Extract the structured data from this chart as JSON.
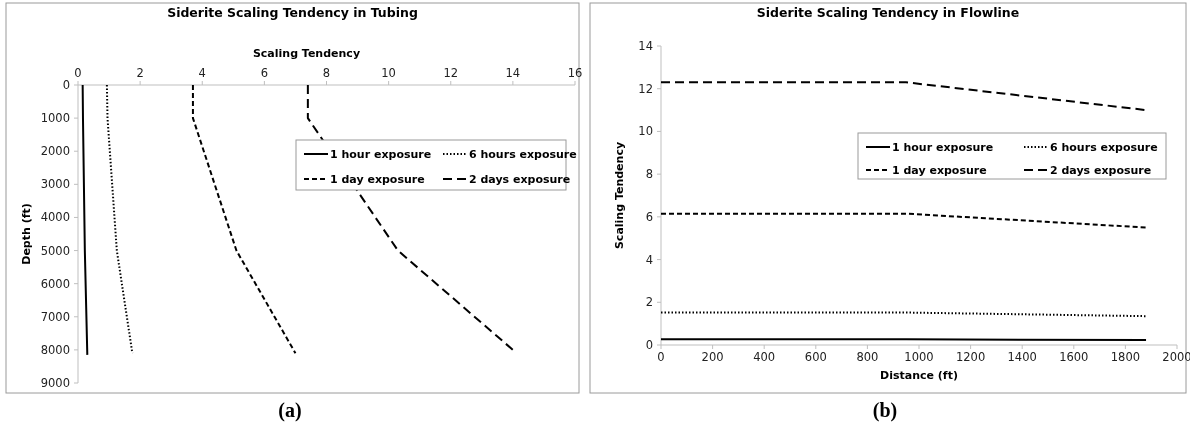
{
  "chart_data": [
    {
      "type": "line",
      "title": "Siderite Scaling Tendency in Tubing",
      "xlabel": "Scaling Tendency",
      "ylabel": "Depth (ft)",
      "xlim": [
        0,
        16
      ],
      "xticks": [
        0,
        2,
        4,
        6,
        8,
        10,
        12,
        14,
        16
      ],
      "ylim": [
        9000,
        0
      ],
      "yticks": [
        0,
        1000,
        2000,
        3000,
        4000,
        5000,
        6000,
        7000,
        8000,
        9000
      ],
      "grid": false,
      "legend": "right",
      "annotations": [
        "(a)"
      ],
      "series": [
        {
          "name": "1 hour exposure",
          "color": "#000000",
          "line_style": "solid",
          "x": [
            0.15,
            0.16,
            0.22,
            0.3
          ],
          "values": [
            0,
            1000,
            5000,
            8150
          ]
        },
        {
          "name": "6 hours exposure",
          "color": "#000000",
          "line_style": "dotted",
          "x": [
            0.93,
            0.95,
            1.25,
            1.75
          ],
          "values": [
            0,
            1000,
            5000,
            8100
          ]
        },
        {
          "name": "1 day exposure",
          "color": "#000000",
          "line_style": "dashed",
          "x": [
            3.7,
            3.7,
            5.1,
            7.0
          ],
          "values": [
            0,
            1000,
            5000,
            8100
          ]
        },
        {
          "name": "2 days exposure",
          "color": "#000000",
          "line_style": "dashed",
          "x": [
            7.4,
            7.4,
            10.3,
            14.0
          ],
          "values": [
            0,
            1000,
            5000,
            8000
          ]
        }
      ]
    },
    {
      "type": "line",
      "title": "Siderite Scaling Tendency in Flowline",
      "xlabel": "Distance (ft)",
      "ylabel": "Scaling Tendency",
      "xlim": [
        0,
        2000
      ],
      "xticks": [
        0,
        200,
        400,
        600,
        800,
        1000,
        1200,
        1400,
        1600,
        1800,
        2000
      ],
      "ylim": [
        0,
        14
      ],
      "yticks": [
        0,
        2,
        4,
        6,
        8,
        10,
        12,
        14
      ],
      "grid": false,
      "legend": "right",
      "annotations": [
        "(b)"
      ],
      "series": [
        {
          "name": "1 hour exposure",
          "color": "#000000",
          "line_style": "solid",
          "x": [
            0,
            950,
            1880
          ],
          "values": [
            0.27,
            0.27,
            0.23
          ]
        },
        {
          "name": "6 hours exposure",
          "color": "#000000",
          "line_style": "dotted",
          "x": [
            0,
            950,
            1880
          ],
          "values": [
            1.52,
            1.52,
            1.35
          ]
        },
        {
          "name": "1 day exposure",
          "color": "#000000",
          "line_style": "dashed",
          "x": [
            0,
            950,
            1880
          ],
          "values": [
            6.15,
            6.15,
            5.5
          ]
        },
        {
          "name": "2 days exposure",
          "color": "#000000",
          "line_style": "dashed",
          "x": [
            0,
            950,
            1880
          ],
          "values": [
            12.3,
            12.3,
            11.0
          ]
        }
      ]
    }
  ]
}
